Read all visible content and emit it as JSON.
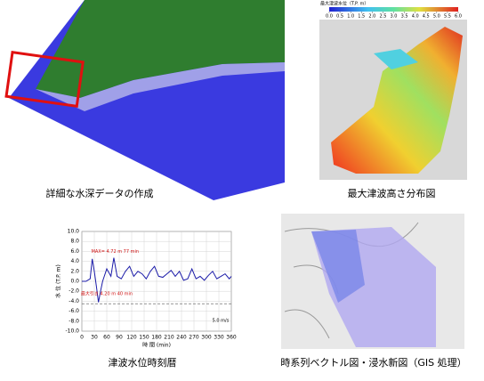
{
  "panels": [
    {
      "caption": "詳細な水深データの作成"
    },
    {
      "caption": "最大津波高さ分布図",
      "colorbar": {
        "title": "最大津波水位（T.P. m）",
        "ticks": [
          {
            "value": 0,
            "label": "0.0"
          },
          {
            "value": 0.5,
            "label": "0.5"
          },
          {
            "value": 1,
            "label": "1.0"
          },
          {
            "value": 1.5,
            "label": "1.5"
          },
          {
            "value": 2,
            "label": "2.0"
          },
          {
            "value": 2.5,
            "label": "2.5"
          },
          {
            "value": 3,
            "label": "3.0"
          },
          {
            "value": 3.5,
            "label": "3.5"
          },
          {
            "value": 4,
            "label": "4.0"
          },
          {
            "value": 4.5,
            "label": "4.5"
          },
          {
            "value": 5,
            "label": "5.0"
          },
          {
            "value": 5.5,
            "label": "5.5"
          },
          {
            "value": 6,
            "label": "6.0"
          }
        ],
        "lim": [
          0,
          6
        ]
      }
    },
    {
      "caption": "津波水位時刻暦",
      "chart": {
        "type": "line",
        "x_label": "時 間 (min)",
        "y_label": "水 位 (T.P. m)",
        "annotations": [
          "MAX= 4.72 m  77 min",
          "最大引き 4.20 m  40 min",
          "5.0 m/s"
        ],
        "color": "#1a1aa8",
        "x": [
          0,
          10,
          20,
          25,
          30,
          35,
          40,
          45,
          50,
          60,
          70,
          77,
          85,
          95,
          105,
          115,
          125,
          135,
          145,
          155,
          165,
          175,
          185,
          195,
          205,
          215,
          225,
          235,
          245,
          255,
          265,
          275,
          285,
          295,
          305,
          315,
          325,
          335,
          345,
          355,
          360
        ],
        "values": [
          0,
          0,
          0.5,
          4.5,
          2,
          -1,
          -4.2,
          -2,
          0,
          2.5,
          1,
          4.72,
          1,
          0.5,
          2,
          3,
          1,
          2,
          1.5,
          0.5,
          2,
          3,
          1,
          0.8,
          1.5,
          2.2,
          1,
          2,
          0.2,
          0.5,
          2.5,
          0.5,
          1,
          0.2,
          1.2,
          2,
          0.5,
          1,
          1.5,
          0.5,
          1
        ],
        "xlim": [
          0,
          360
        ],
        "xticks": [
          0,
          30,
          60,
          90,
          120,
          150,
          180,
          210,
          240,
          270,
          300,
          330,
          360
        ],
        "ylim": [
          -10,
          10
        ],
        "yticks": [
          {
            "value": 10,
            "label": "10.0"
          },
          {
            "value": 8,
            "label": "8.0"
          },
          {
            "value": 6,
            "label": "6.0"
          },
          {
            "value": 4,
            "label": "4.0"
          },
          {
            "value": 2,
            "label": "2.0"
          },
          {
            "value": 0,
            "label": "0.0"
          },
          {
            "value": -2,
            "label": "-2.0"
          },
          {
            "value": -4,
            "label": "-4.0"
          },
          {
            "value": -6,
            "label": "-6.0"
          },
          {
            "value": -8,
            "label": "-8.0"
          },
          {
            "value": -10,
            "label": "-10.0"
          }
        ],
        "grid": true
      }
    },
    {
      "caption": "時系列ベクトル図・浸水新図（GIS 処理）"
    }
  ]
}
